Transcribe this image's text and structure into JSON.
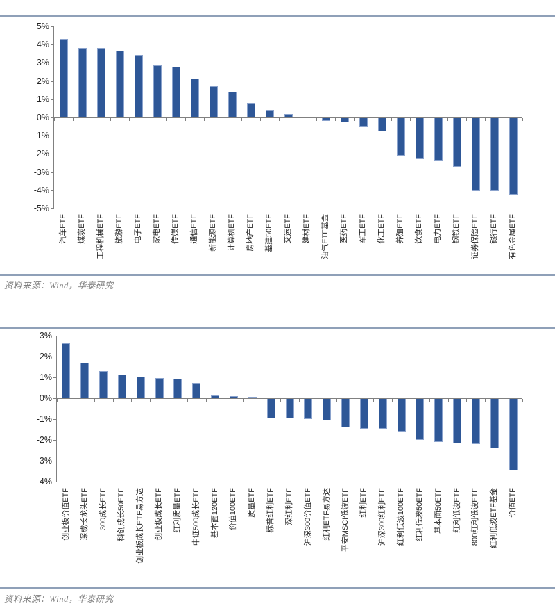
{
  "figures": [
    {
      "source": "资料来源：Wind，华泰研究"
    },
    {
      "source": "资料来源：Wind，华泰研究"
    }
  ],
  "colors": {
    "bar": "#2E5797",
    "bar_edge": "#8AA2CC",
    "axis": "#808080",
    "rule": "#8FA0B8",
    "source_text": "#7F7F7F",
    "label_text": "#262626"
  },
  "chart_data": [
    {
      "type": "bar",
      "unit": "%",
      "categories": [
        "汽车ETF",
        "煤炭ETF",
        "工程机械ETF",
        "旅游ETF",
        "电子ETF",
        "家电ETF",
        "传媒ETF",
        "通信ETF",
        "新能源ETF",
        "计算机ETF",
        "房地产ETF",
        "基建50ETF",
        "交运ETF",
        "建材ETF",
        "油气ETF基金",
        "医药ETF",
        "军工ETF",
        "化工ETF",
        "养殖ETF",
        "饮食ETF",
        "电力ETF",
        "钢铁ETF",
        "证券保险ETF",
        "银行ETF",
        "有色金属ETF"
      ],
      "values": [
        4.3,
        3.8,
        3.8,
        3.65,
        3.45,
        2.85,
        2.8,
        2.15,
        1.7,
        1.4,
        0.8,
        0.4,
        0.2,
        0.0,
        -0.2,
        -0.25,
        -0.55,
        -0.75,
        -2.1,
        -2.3,
        -2.35,
        -2.7,
        -4.05,
        -4.05,
        -4.25
      ],
      "ylim": [
        -5,
        5
      ],
      "ytick_step": 1,
      "ytick_format": "percent",
      "grid": false,
      "legend_position": "none",
      "bar_orientation": "vertical",
      "category_label_rotation": -90
    },
    {
      "type": "bar",
      "unit": "%",
      "categories": [
        "创业板价值ETF",
        "深成长龙头ETF",
        "300成长ETF",
        "科创成长50ETF",
        "创业板成长ETF易方达",
        "创业板成长ETF",
        "红利质量ETF",
        "中证500成长ETF",
        "基本面120ETF",
        "价值100ETF",
        "质量ETF",
        "标普红利ETF",
        "深红利ETF",
        "沪深300价值ETF",
        "红利ETF易方达",
        "平安MSCI低波ETF",
        "红利ETF",
        "沪深300红利ETF",
        "红利低波100ETF",
        "红利低波50ETF",
        "基本面50ETF",
        "红利低波ETF",
        "800红利低波ETF",
        "红利低波ETF基金",
        "价值ETF"
      ],
      "values": [
        2.65,
        1.7,
        1.3,
        1.15,
        1.05,
        0.97,
        0.95,
        0.75,
        0.15,
        0.1,
        0.08,
        -0.95,
        -0.95,
        -1.0,
        -1.05,
        -1.4,
        -1.45,
        -1.45,
        -1.6,
        -2.0,
        -2.1,
        -2.15,
        -2.2,
        -2.4,
        -3.45
      ],
      "ylim": [
        -4,
        3
      ],
      "ytick_step": 1,
      "ytick_format": "percent",
      "grid": false,
      "legend_position": "none",
      "bar_orientation": "vertical",
      "category_label_rotation": -90
    }
  ]
}
